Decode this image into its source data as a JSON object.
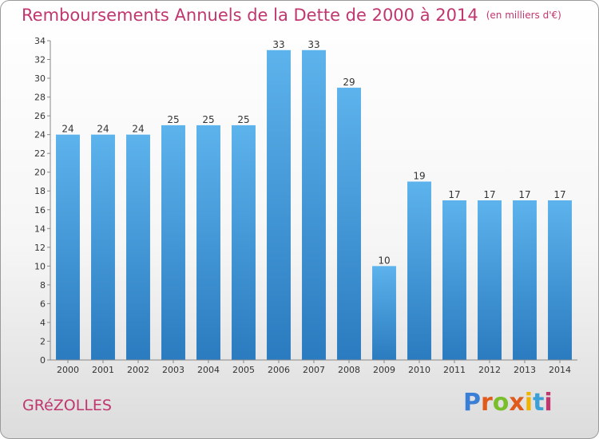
{
  "header": {
    "title": "Remboursements Annuels de la Dette de 2000 à 2014",
    "subtitle": "(en milliers d'€)"
  },
  "commune": "GRéZOLLES",
  "brand": {
    "text": "Proxiti",
    "letter_colors": [
      "#3a7fd5",
      "#e05a1c",
      "#7abf2b",
      "#e05a1c",
      "#f0b400",
      "#3aa0d5",
      "#c0366e"
    ]
  },
  "colors": {
    "accent": "#c0366e",
    "bar_top": "#5db3ec",
    "bar_bottom": "#2a7bbf"
  },
  "chart_data": {
    "type": "bar",
    "title": "Remboursements Annuels de la Dette de 2000 à 2014",
    "subtitle": "(en milliers d'€)",
    "xlabel": "",
    "ylabel": "",
    "categories": [
      "2000",
      "2001",
      "2002",
      "2003",
      "2004",
      "2005",
      "2006",
      "2007",
      "2008",
      "2009",
      "2010",
      "2011",
      "2012",
      "2013",
      "2014"
    ],
    "values": [
      24,
      24,
      24,
      25,
      25,
      25,
      33,
      33,
      29,
      10,
      19,
      17,
      17,
      17,
      17
    ],
    "ylim": [
      0,
      34
    ],
    "yticks": [
      0,
      2,
      4,
      6,
      8,
      10,
      12,
      14,
      16,
      18,
      20,
      22,
      24,
      26,
      28,
      30,
      32,
      34
    ],
    "grid": false,
    "legend": "none"
  }
}
